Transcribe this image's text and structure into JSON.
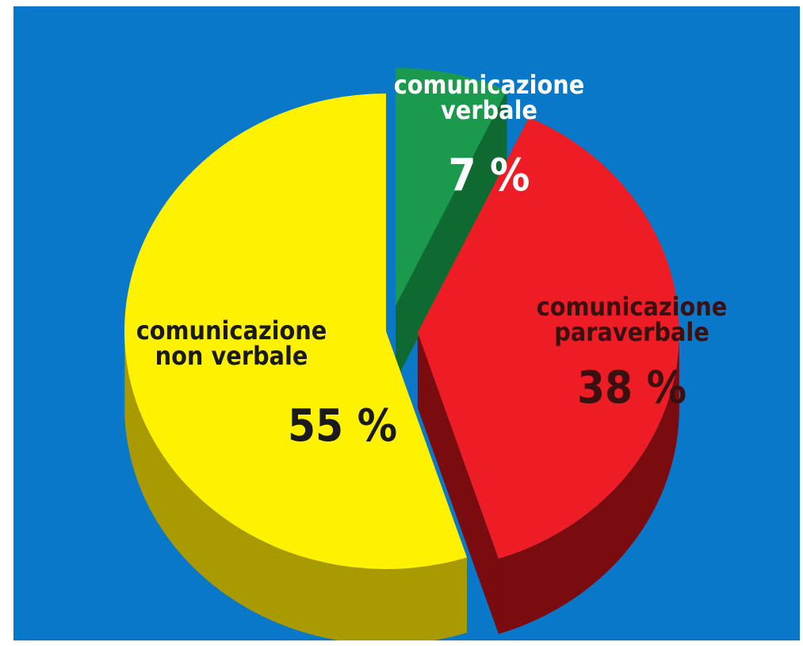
{
  "chart_data": {
    "type": "pie",
    "style": "3d-exploded",
    "title": "",
    "slices": [
      {
        "key": "non_verbale",
        "label_lines": [
          "comunicazione",
          "non verbale"
        ],
        "value": 55,
        "value_label": "55 %",
        "color": "#fff200",
        "side_color": "#a89a00",
        "label_color": "#1a1a1a"
      },
      {
        "key": "verbale",
        "label_lines": [
          "comunicazione",
          "verbale"
        ],
        "value": 7,
        "value_label": "7 %",
        "color": "#1b9a4e",
        "side_color": "#0f6a32",
        "label_color": "#ffffff"
      },
      {
        "key": "paraverbale",
        "label_lines": [
          "comunicazione",
          "paraverbale"
        ],
        "value": 38,
        "value_label": "38 %",
        "color": "#ee1c25",
        "side_color": "#7a0b0e",
        "label_color": "#3a1010"
      }
    ],
    "background_color": "#0a78c9"
  }
}
